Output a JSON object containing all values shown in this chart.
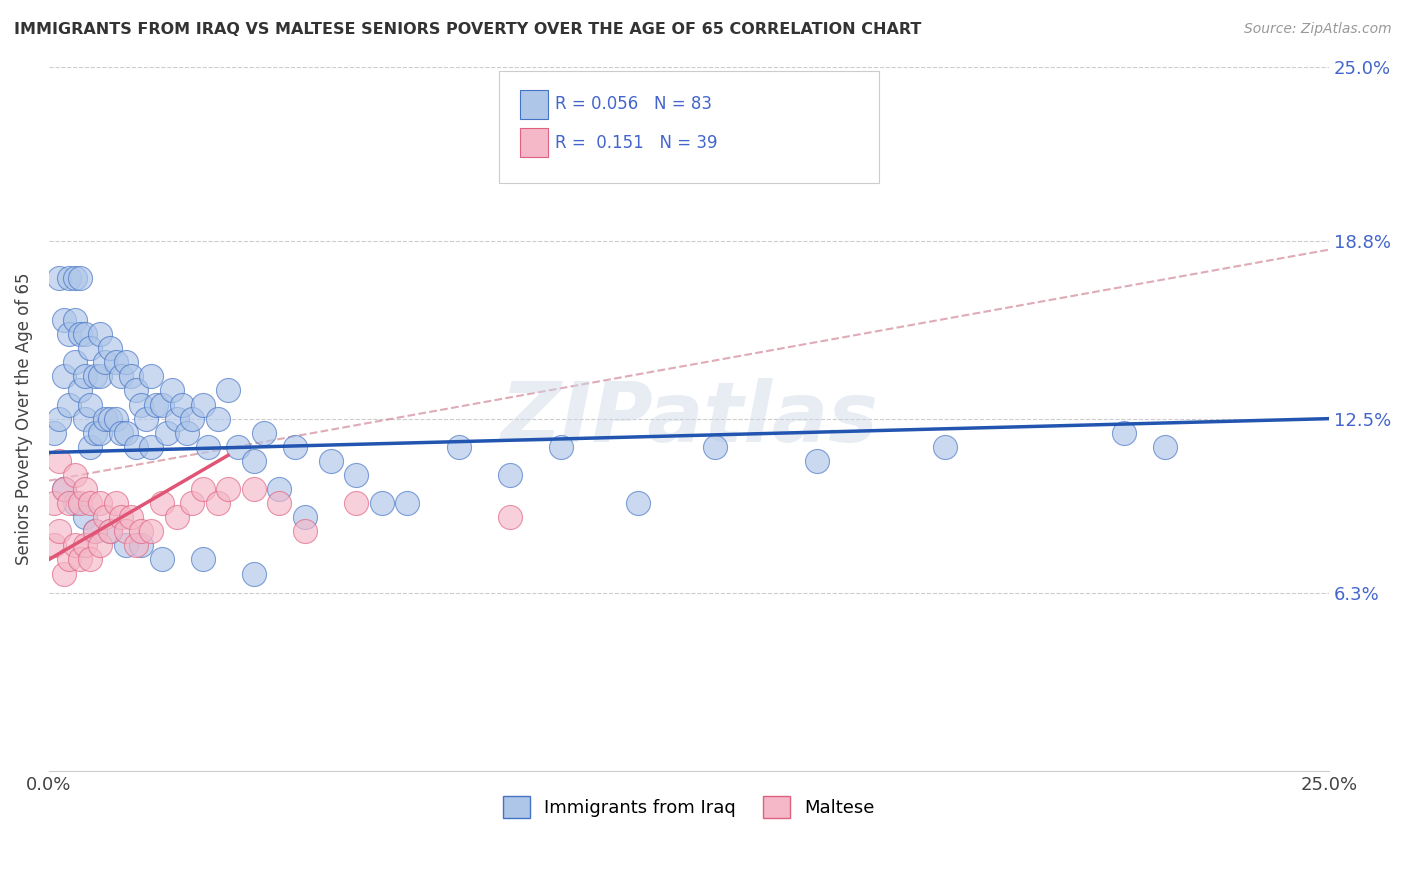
{
  "title": "IMMIGRANTS FROM IRAQ VS MALTESE SENIORS POVERTY OVER THE AGE OF 65 CORRELATION CHART",
  "source": "Source: ZipAtlas.com",
  "ylabel": "Seniors Poverty Over the Age of 65",
  "legend_iraq": "Immigrants from Iraq",
  "legend_maltese": "Maltese",
  "color_iraq_fill": "#aec6e8",
  "color_iraq_edge": "#4472c4",
  "color_maltese_fill": "#f4b8c8",
  "color_maltese_edge": "#e06080",
  "color_iraq_trend": "#2255b0",
  "color_maltese_trend": "#e05575",
  "color_dashed": "#d08898",
  "xlim": [
    0.0,
    0.25
  ],
  "ylim": [
    0.0,
    0.25
  ],
  "xtick_positions": [
    0.0,
    0.05,
    0.1,
    0.15,
    0.2,
    0.25
  ],
  "xtick_labels": [
    "0.0%",
    "",
    "",
    "",
    "",
    "25.0%"
  ],
  "ytick_positions": [
    0.0,
    0.063,
    0.125,
    0.188,
    0.25
  ],
  "ytick_labels_right": [
    "",
    "6.3%",
    "12.5%",
    "18.8%",
    "25.0%"
  ],
  "iraq_trend_x0": 0.0,
  "iraq_trend_y0": 0.113,
  "iraq_trend_x1": 0.25,
  "iraq_trend_y1": 0.125,
  "maltese_trend_x0": 0.0,
  "maltese_trend_y0": 0.075,
  "maltese_trend_x1": 0.035,
  "maltese_trend_y1": 0.112,
  "dashed_trend_x0": 0.0,
  "dashed_trend_y0": 0.103,
  "dashed_trend_x1": 0.25,
  "dashed_trend_y1": 0.185,
  "iraq_x": [
    0.001,
    0.002,
    0.002,
    0.003,
    0.003,
    0.004,
    0.004,
    0.004,
    0.005,
    0.005,
    0.005,
    0.006,
    0.006,
    0.006,
    0.007,
    0.007,
    0.007,
    0.008,
    0.008,
    0.008,
    0.009,
    0.009,
    0.01,
    0.01,
    0.01,
    0.011,
    0.011,
    0.012,
    0.012,
    0.013,
    0.013,
    0.014,
    0.014,
    0.015,
    0.015,
    0.016,
    0.017,
    0.017,
    0.018,
    0.019,
    0.02,
    0.02,
    0.021,
    0.022,
    0.023,
    0.024,
    0.025,
    0.026,
    0.027,
    0.028,
    0.03,
    0.031,
    0.033,
    0.035,
    0.037,
    0.04,
    0.042,
    0.045,
    0.048,
    0.05,
    0.055,
    0.06,
    0.065,
    0.07,
    0.08,
    0.09,
    0.1,
    0.115,
    0.13,
    0.15,
    0.175,
    0.21,
    0.218,
    0.003,
    0.005,
    0.007,
    0.009,
    0.012,
    0.015,
    0.018,
    0.022,
    0.03,
    0.04
  ],
  "iraq_y": [
    0.12,
    0.175,
    0.125,
    0.16,
    0.14,
    0.175,
    0.155,
    0.13,
    0.175,
    0.16,
    0.145,
    0.175,
    0.155,
    0.135,
    0.155,
    0.14,
    0.125,
    0.15,
    0.13,
    0.115,
    0.14,
    0.12,
    0.155,
    0.14,
    0.12,
    0.145,
    0.125,
    0.15,
    0.125,
    0.145,
    0.125,
    0.14,
    0.12,
    0.145,
    0.12,
    0.14,
    0.135,
    0.115,
    0.13,
    0.125,
    0.14,
    0.115,
    0.13,
    0.13,
    0.12,
    0.135,
    0.125,
    0.13,
    0.12,
    0.125,
    0.13,
    0.115,
    0.125,
    0.135,
    0.115,
    0.11,
    0.12,
    0.1,
    0.115,
    0.09,
    0.11,
    0.105,
    0.095,
    0.095,
    0.115,
    0.105,
    0.115,
    0.095,
    0.115,
    0.11,
    0.115,
    0.12,
    0.115,
    0.1,
    0.095,
    0.09,
    0.085,
    0.085,
    0.08,
    0.08,
    0.075,
    0.075,
    0.07
  ],
  "maltese_x": [
    0.001,
    0.001,
    0.002,
    0.002,
    0.003,
    0.003,
    0.004,
    0.004,
    0.005,
    0.005,
    0.006,
    0.006,
    0.007,
    0.007,
    0.008,
    0.008,
    0.009,
    0.01,
    0.01,
    0.011,
    0.012,
    0.013,
    0.014,
    0.015,
    0.016,
    0.017,
    0.018,
    0.02,
    0.022,
    0.025,
    0.028,
    0.03,
    0.033,
    0.035,
    0.04,
    0.045,
    0.05,
    0.06,
    0.09
  ],
  "maltese_y": [
    0.095,
    0.08,
    0.11,
    0.085,
    0.1,
    0.07,
    0.095,
    0.075,
    0.105,
    0.08,
    0.095,
    0.075,
    0.1,
    0.08,
    0.095,
    0.075,
    0.085,
    0.095,
    0.08,
    0.09,
    0.085,
    0.095,
    0.09,
    0.085,
    0.09,
    0.08,
    0.085,
    0.085,
    0.095,
    0.09,
    0.095,
    0.1,
    0.095,
    0.1,
    0.1,
    0.095,
    0.085,
    0.095,
    0.09
  ],
  "fig_width": 14.06,
  "fig_height": 8.92,
  "watermark_text": "ZIPatlas"
}
